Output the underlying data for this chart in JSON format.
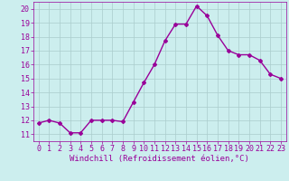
{
  "x": [
    0,
    1,
    2,
    3,
    4,
    5,
    6,
    7,
    8,
    9,
    10,
    11,
    12,
    13,
    14,
    15,
    16,
    17,
    18,
    19,
    20,
    21,
    22,
    23
  ],
  "y": [
    11.8,
    12.0,
    11.8,
    11.1,
    11.1,
    12.0,
    12.0,
    12.0,
    11.9,
    13.3,
    14.7,
    16.0,
    17.7,
    18.9,
    18.9,
    20.2,
    19.5,
    18.1,
    17.0,
    16.7,
    16.7,
    16.3,
    15.3,
    15.0
  ],
  "line_color": "#990099",
  "marker": "D",
  "marker_size": 2.0,
  "line_width": 1.0,
  "bg_color": "#cceeee",
  "grid_color": "#aacccc",
  "xlabel": "Windchill (Refroidissement éolien,°C)",
  "xlabel_color": "#990099",
  "xlabel_fontsize": 6.5,
  "tick_color": "#990099",
  "tick_fontsize": 6.0,
  "xlim": [
    -0.5,
    23.5
  ],
  "ylim": [
    10.5,
    20.5
  ],
  "yticks": [
    11,
    12,
    13,
    14,
    15,
    16,
    17,
    18,
    19,
    20
  ],
  "xticks": [
    0,
    1,
    2,
    3,
    4,
    5,
    6,
    7,
    8,
    9,
    10,
    11,
    12,
    13,
    14,
    15,
    16,
    17,
    18,
    19,
    20,
    21,
    22,
    23
  ]
}
